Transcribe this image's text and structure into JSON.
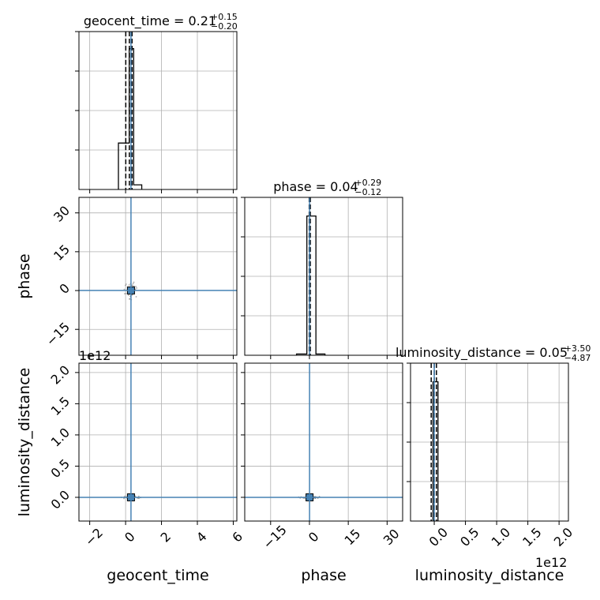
{
  "chart_data": {
    "type": "corner",
    "parameters": [
      "geocent_time",
      "phase",
      "luminosity_distance"
    ],
    "truth_color": "#4682b4",
    "grid": true,
    "truths": {
      "geocent_time": 0.3,
      "phase": 0.04,
      "luminosity_distance": 0.0
    },
    "titles": [
      {
        "param": "geocent_time",
        "text": "geocent_time = 0.21",
        "plus": "+0.15",
        "minus": "−0.20"
      },
      {
        "param": "phase",
        "text": "phase = 0.04",
        "plus": "+0.29",
        "minus": "−0.12"
      },
      {
        "param": "luminosity_distance",
        "text": "luminosity_distance = 0.05",
        "plus": "+3.50",
        "minus": "−4.87"
      }
    ],
    "axes": {
      "geocent_time": {
        "range": [
          -2.6,
          6.2
        ],
        "ticks": [
          -2,
          0,
          2,
          4,
          6
        ],
        "tick_labels": [
          "−2",
          "0",
          "2",
          "4",
          "6"
        ],
        "label": "geocent_time"
      },
      "phase": {
        "range": [
          -25,
          36
        ],
        "ticks": [
          -15,
          0,
          15,
          30
        ],
        "tick_labels": [
          "−15",
          "0",
          "15",
          "30"
        ],
        "label": "phase"
      },
      "luminosity_distance": {
        "range": [
          -0.38,
          2.15
        ],
        "ticks": [
          0.0,
          0.5,
          1.0,
          1.5,
          2.0
        ],
        "tick_labels": [
          "0.0",
          "0.5",
          "1.0",
          "1.5",
          "2.0"
        ],
        "label": "luminosity_distance",
        "offset": "1e12"
      }
    },
    "histograms": {
      "geocent_time": {
        "quantiles": [
          0.01,
          0.21,
          0.36
        ],
        "bins": [
          {
            "lo": -0.4,
            "hi": 0.0,
            "value": 0.3
          },
          {
            "lo": 0.0,
            "hi": 0.2,
            "value": 0.3
          },
          {
            "lo": 0.2,
            "hi": 0.45,
            "value": 0.91
          },
          {
            "lo": 0.45,
            "hi": 0.9,
            "value": 0.03
          }
        ]
      },
      "phase": {
        "quantiles": [
          -0.08,
          0.04,
          0.33
        ],
        "bins": [
          {
            "lo": -5,
            "hi": -1,
            "value": 0.008
          },
          {
            "lo": -1,
            "hi": 2.5,
            "value": 0.9
          },
          {
            "lo": 2.5,
            "hi": 6,
            "value": 0.008
          }
        ]
      },
      "luminosity_distance": {
        "quantiles": [
          -0.0487,
          0.0005,
          0.035
        ],
        "bins": [
          {
            "lo": -0.02,
            "hi": 0.06,
            "value": 0.9
          }
        ]
      }
    },
    "samples_note": "dense cluster of posterior samples at the truth values"
  }
}
